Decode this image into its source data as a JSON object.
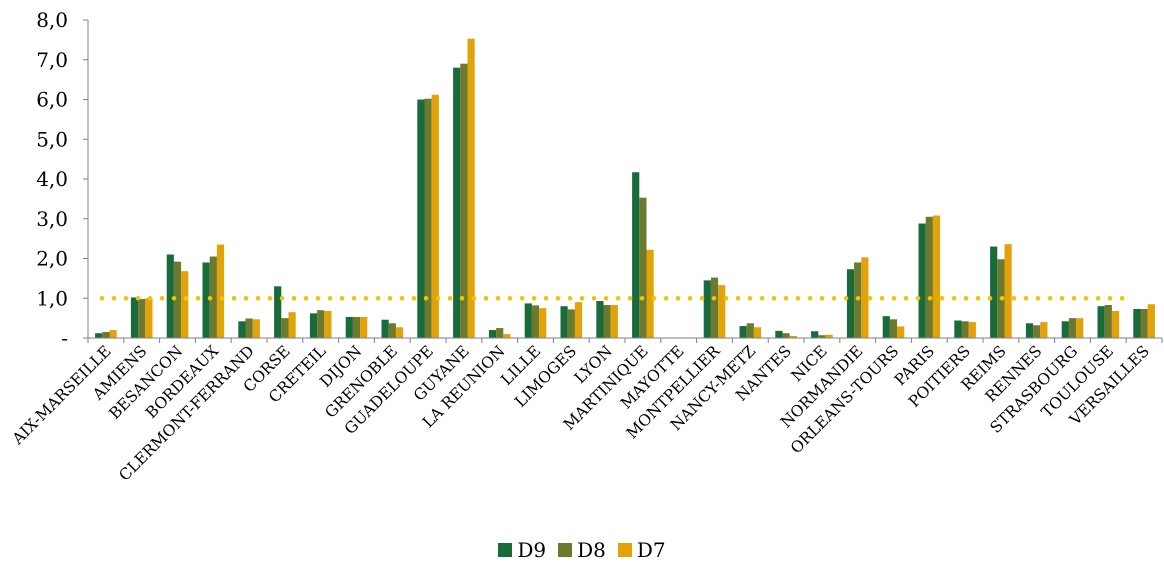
{
  "chart_data": {
    "type": "bar",
    "categories": [
      "AIX-MARSEILLE",
      "AMIENS",
      "BESANCON",
      "BORDEAUX",
      "CLERMONT-FERRAND",
      "CORSE",
      "CRETEIL",
      "DIJON",
      "GRENOBLE",
      "GUADELOUPE",
      "GUYANE",
      "LA REUNION",
      "LILLE",
      "LIMOGES",
      "LYON",
      "MARTINIQUE",
      "MAYOTTE",
      "MONTPELLIER",
      "NANCY-METZ",
      "NANTES",
      "NICE",
      "NORMANDIE",
      "ORLEANS-TOURS",
      "PARIS",
      "POITIERS",
      "REIMS",
      "RENNES",
      "STRASBOURG",
      "TOULOUSE",
      "VERSAILLES"
    ],
    "series": [
      {
        "name": "D9",
        "color": "#1a6b3c",
        "values": [
          0.12,
          1.02,
          2.1,
          1.9,
          0.42,
          1.3,
          0.62,
          0.53,
          0.46,
          6.0,
          6.8,
          0.2,
          0.87,
          0.8,
          0.93,
          4.17,
          0,
          1.45,
          0.3,
          0.18,
          0.17,
          1.73,
          0.55,
          2.88,
          0.44,
          2.3,
          0.37,
          0.42,
          0.8,
          0.73
        ]
      },
      {
        "name": "D8",
        "color": "#6b7a2e",
        "values": [
          0.15,
          0.98,
          1.92,
          2.05,
          0.49,
          0.5,
          0.7,
          0.53,
          0.37,
          6.02,
          6.9,
          0.25,
          0.82,
          0.72,
          0.83,
          3.53,
          0,
          1.52,
          0.37,
          0.12,
          0.07,
          1.9,
          0.47,
          3.05,
          0.42,
          1.98,
          0.32,
          0.5,
          0.83,
          0.73
        ]
      },
      {
        "name": "D7",
        "color": "#e1a20a",
        "values": [
          0.2,
          1.0,
          1.68,
          2.35,
          0.47,
          0.65,
          0.68,
          0.53,
          0.27,
          6.12,
          7.53,
          0.1,
          0.75,
          0.9,
          0.83,
          2.22,
          0,
          1.33,
          0.27,
          0.05,
          0.08,
          2.03,
          0.29,
          3.08,
          0.4,
          2.36,
          0.4,
          0.5,
          0.68,
          0.85
        ]
      }
    ],
    "reference_line": {
      "value": 1.0,
      "color": "#f2c500"
    },
    "yticks": [
      "-",
      "1,0",
      "2,0",
      "3,0",
      "4,0",
      "5,0",
      "6,0",
      "7,0",
      "8,0"
    ],
    "ylim": [
      0,
      8
    ],
    "title": "",
    "xlabel": "",
    "ylabel": "",
    "legend_position": "bottom",
    "grid": false
  }
}
